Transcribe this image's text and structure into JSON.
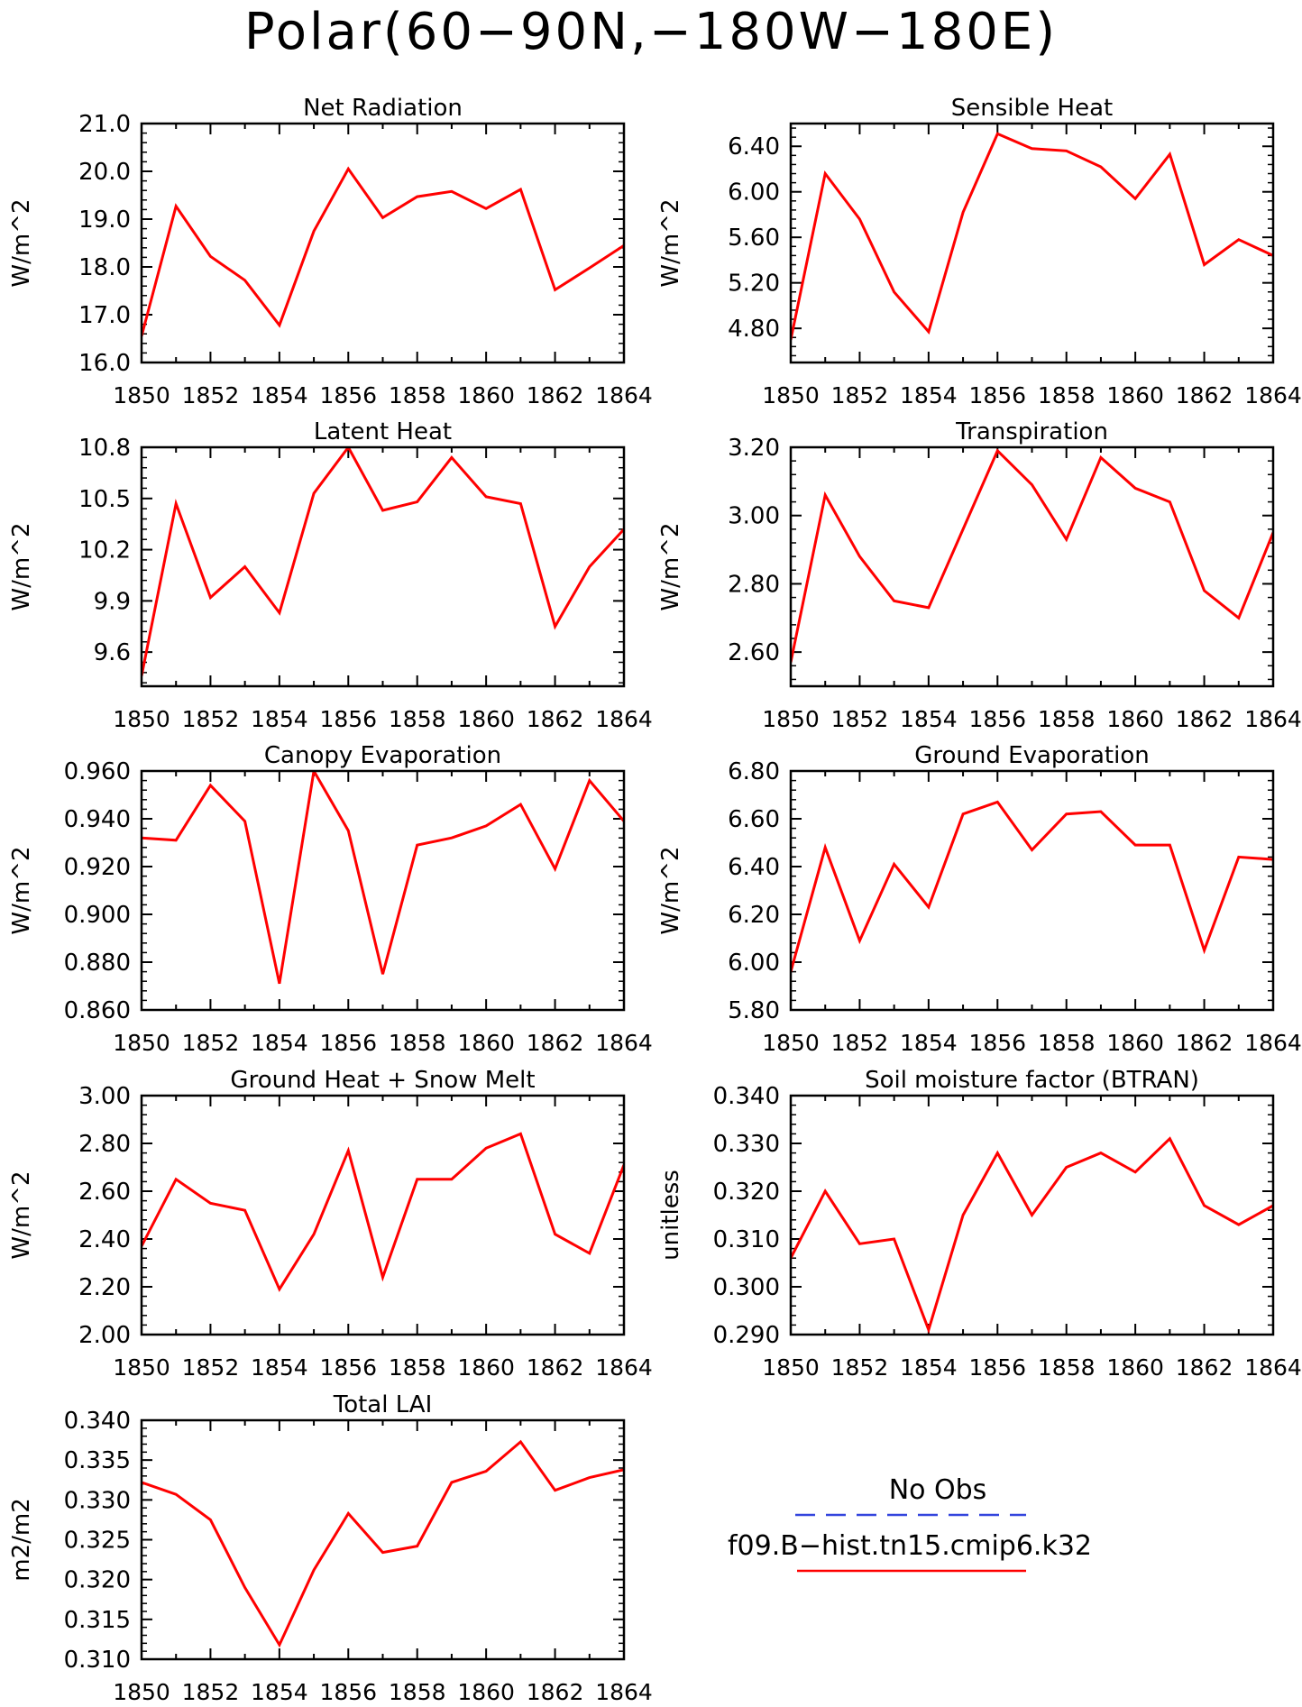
{
  "title": "Polar(60−90N,−180W−180E)",
  "x_tick_labels": [
    "1850",
    "1852",
    "1854",
    "1856",
    "1858",
    "1860",
    "1862",
    "1864"
  ],
  "legend": {
    "obs_label": "No Obs",
    "obs_color": "#3344dd",
    "model_label": "f09.B−hist.tn15.cmip6.k32",
    "model_color": "#ff0000"
  },
  "chart_data": [
    {
      "type": "line",
      "title": "Net Radiation",
      "ylabel": "W/m^2",
      "x": [
        1850,
        1851,
        1852,
        1853,
        1854,
        1855,
        1856,
        1857,
        1858,
        1859,
        1860,
        1861,
        1862,
        1863,
        1864
      ],
      "values": [
        16.55,
        19.27,
        18.22,
        17.72,
        16.78,
        18.75,
        20.05,
        19.03,
        19.47,
        19.58,
        19.22,
        19.62,
        17.52,
        17.98,
        18.45
      ],
      "xlim": [
        1850,
        1864
      ],
      "ylim": [
        16.0,
        21.0
      ],
      "yticks": [
        16.0,
        17.0,
        18.0,
        19.0,
        20.0,
        21.0
      ],
      "ytick_labels": [
        "16.0",
        "17.0",
        "18.0",
        "19.0",
        "20.0",
        "21.0"
      ],
      "color": "#ff0000",
      "grid": false
    },
    {
      "type": "line",
      "title": "Sensible Heat",
      "ylabel": "W/m^2",
      "x": [
        1850,
        1851,
        1852,
        1853,
        1854,
        1855,
        1856,
        1857,
        1858,
        1859,
        1860,
        1861,
        1862,
        1863,
        1864
      ],
      "values": [
        4.7,
        6.16,
        5.76,
        5.12,
        4.77,
        5.82,
        6.51,
        6.38,
        6.36,
        6.22,
        5.94,
        6.33,
        5.36,
        5.58,
        5.44
      ],
      "xlim": [
        1850,
        1864
      ],
      "ylim": [
        4.5,
        6.6
      ],
      "yticks": [
        4.8,
        5.2,
        5.6,
        6.0,
        6.4
      ],
      "ytick_labels": [
        "4.80",
        "5.20",
        "5.60",
        "6.00",
        "6.40"
      ],
      "color": "#ff0000",
      "grid": false
    },
    {
      "type": "line",
      "title": "Latent Heat",
      "ylabel": "W/m^2",
      "x": [
        1850,
        1851,
        1852,
        1853,
        1854,
        1855,
        1856,
        1857,
        1858,
        1859,
        1860,
        1861,
        1862,
        1863,
        1864
      ],
      "values": [
        9.46,
        10.47,
        9.92,
        10.1,
        9.83,
        10.53,
        10.8,
        10.43,
        10.48,
        10.74,
        10.51,
        10.47,
        9.75,
        10.1,
        10.32
      ],
      "xlim": [
        1850,
        1864
      ],
      "ylim": [
        9.4,
        10.8
      ],
      "yticks": [
        9.6,
        9.9,
        10.2,
        10.5,
        10.8
      ],
      "ytick_labels": [
        "9.6",
        "9.9",
        "10.2",
        "10.5",
        "10.8"
      ],
      "color": "#ff0000",
      "grid": false
    },
    {
      "type": "line",
      "title": "Transpiration",
      "ylabel": "W/m^2",
      "x": [
        1850,
        1851,
        1852,
        1853,
        1854,
        1855,
        1856,
        1857,
        1858,
        1859,
        1860,
        1861,
        1862,
        1863,
        1864
      ],
      "values": [
        2.57,
        3.06,
        2.88,
        2.75,
        2.73,
        2.96,
        3.19,
        3.09,
        2.93,
        3.17,
        3.08,
        3.04,
        2.78,
        2.7,
        2.95
      ],
      "xlim": [
        1850,
        1864
      ],
      "ylim": [
        2.5,
        3.2
      ],
      "yticks": [
        2.6,
        2.8,
        3.0,
        3.2
      ],
      "ytick_labels": [
        "2.60",
        "2.80",
        "3.00",
        "3.20"
      ],
      "color": "#ff0000",
      "grid": false
    },
    {
      "type": "line",
      "title": "Canopy Evaporation",
      "ylabel": "W/m^2",
      "x": [
        1850,
        1851,
        1852,
        1853,
        1854,
        1855,
        1856,
        1857,
        1858,
        1859,
        1860,
        1861,
        1862,
        1863,
        1864
      ],
      "values": [
        0.932,
        0.931,
        0.954,
        0.939,
        0.871,
        0.96,
        0.935,
        0.875,
        0.929,
        0.932,
        0.937,
        0.946,
        0.919,
        0.956,
        0.939
      ],
      "xlim": [
        1850,
        1864
      ],
      "ylim": [
        0.86,
        0.96
      ],
      "yticks": [
        0.86,
        0.88,
        0.9,
        0.92,
        0.94,
        0.96
      ],
      "ytick_labels": [
        "0.860",
        "0.880",
        "0.900",
        "0.920",
        "0.940",
        "0.960"
      ],
      "color": "#ff0000",
      "grid": false
    },
    {
      "type": "line",
      "title": "Ground Evaporation",
      "ylabel": "W/m^2",
      "x": [
        1850,
        1851,
        1852,
        1853,
        1854,
        1855,
        1856,
        1857,
        1858,
        1859,
        1860,
        1861,
        1862,
        1863,
        1864
      ],
      "values": [
        5.96,
        6.48,
        6.09,
        6.41,
        6.23,
        6.62,
        6.67,
        6.47,
        6.62,
        6.63,
        6.49,
        6.49,
        6.05,
        6.44,
        6.43
      ],
      "xlim": [
        1850,
        1864
      ],
      "ylim": [
        5.8,
        6.8
      ],
      "yticks": [
        5.8,
        6.0,
        6.2,
        6.4,
        6.6,
        6.8
      ],
      "ytick_labels": [
        "5.80",
        "6.00",
        "6.20",
        "6.40",
        "6.60",
        "6.80"
      ],
      "color": "#ff0000",
      "grid": false
    },
    {
      "type": "line",
      "title": "Ground Heat + Snow Melt",
      "ylabel": "W/m^2",
      "x": [
        1850,
        1851,
        1852,
        1853,
        1854,
        1855,
        1856,
        1857,
        1858,
        1859,
        1860,
        1861,
        1862,
        1863,
        1864
      ],
      "values": [
        2.37,
        2.65,
        2.55,
        2.52,
        2.19,
        2.42,
        2.77,
        2.24,
        2.65,
        2.65,
        2.78,
        2.84,
        2.42,
        2.34,
        2.71
      ],
      "xlim": [
        1850,
        1864
      ],
      "ylim": [
        2.0,
        3.0
      ],
      "yticks": [
        2.0,
        2.2,
        2.4,
        2.6,
        2.8,
        3.0
      ],
      "ytick_labels": [
        "2.00",
        "2.20",
        "2.40",
        "2.60",
        "2.80",
        "3.00"
      ],
      "color": "#ff0000",
      "grid": false
    },
    {
      "type": "line",
      "title": "Soil moisture factor (BTRAN)",
      "ylabel": "unitless",
      "x": [
        1850,
        1851,
        1852,
        1853,
        1854,
        1855,
        1856,
        1857,
        1858,
        1859,
        1860,
        1861,
        1862,
        1863,
        1864
      ],
      "values": [
        0.306,
        0.32,
        0.309,
        0.31,
        0.291,
        0.315,
        0.328,
        0.315,
        0.325,
        0.328,
        0.324,
        0.331,
        0.317,
        0.313,
        0.317
      ],
      "xlim": [
        1850,
        1864
      ],
      "ylim": [
        0.29,
        0.34
      ],
      "yticks": [
        0.29,
        0.3,
        0.31,
        0.32,
        0.33,
        0.34
      ],
      "ytick_labels": [
        "0.290",
        "0.300",
        "0.310",
        "0.320",
        "0.330",
        "0.340"
      ],
      "color": "#ff0000",
      "grid": false
    },
    {
      "type": "line",
      "title": "Total LAI",
      "ylabel": "m2/m2",
      "x": [
        1850,
        1851,
        1852,
        1853,
        1854,
        1855,
        1856,
        1857,
        1858,
        1859,
        1860,
        1861,
        1862,
        1863,
        1864
      ],
      "values": [
        0.3322,
        0.3307,
        0.3275,
        0.319,
        0.3118,
        0.3212,
        0.3283,
        0.3234,
        0.3242,
        0.3322,
        0.3336,
        0.3373,
        0.3312,
        0.3328,
        0.3338
      ],
      "xlim": [
        1850,
        1864
      ],
      "ylim": [
        0.31,
        0.34
      ],
      "yticks": [
        0.31,
        0.315,
        0.32,
        0.325,
        0.33,
        0.335,
        0.34
      ],
      "ytick_labels": [
        "0.310",
        "0.315",
        "0.320",
        "0.325",
        "0.330",
        "0.335",
        "0.340"
      ],
      "color": "#ff0000",
      "grid": false
    }
  ]
}
